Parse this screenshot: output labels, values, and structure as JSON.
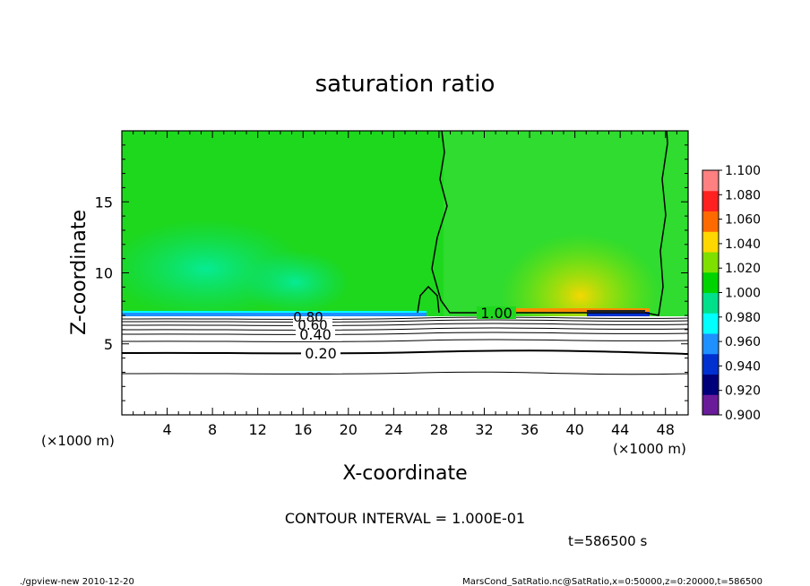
{
  "chart_data": {
    "type": "heatmap",
    "title": "saturation ratio",
    "xlabel": "X-coordinate",
    "ylabel": "Z-coordinate",
    "x_unit_left": "(×1000 m)",
    "x_unit_right": "(×1000 m)",
    "xlim": [
      0,
      50
    ],
    "ylim": [
      0,
      20
    ],
    "xticks": [
      4,
      8,
      12,
      16,
      20,
      24,
      28,
      32,
      36,
      40,
      44,
      48
    ],
    "yticks": [
      5,
      10,
      15
    ],
    "colorbar": {
      "levels": [
        0.9,
        0.92,
        0.94,
        0.96,
        0.98,
        1.0,
        1.02,
        1.04,
        1.06,
        1.08,
        1.1
      ],
      "labels": [
        "0.900",
        "0.920",
        "0.940",
        "0.960",
        "0.980",
        "1.000",
        "1.020",
        "1.040",
        "1.060",
        "1.080",
        "1.100"
      ],
      "colors": [
        "#6a1b9a",
        "#00007a",
        "#0030d0",
        "#1e90ff",
        "#00ffff",
        "#00e08a",
        "#00d400",
        "#7fe000",
        "#ffd700",
        "#ff6a00",
        "#ff2020",
        "#ff8080"
      ]
    },
    "contour_labels": [
      {
        "text": "0.20",
        "x": 18.5,
        "z": 4.4
      },
      {
        "text": "0.40",
        "x": 17.2,
        "z": 5.7
      },
      {
        "text": "0.60",
        "x": 16.7,
        "z": 6.3
      },
      {
        "text": "0.80",
        "x": 16.3,
        "z": 6.8
      },
      {
        "text": "1.00",
        "x": 32.6,
        "z": 7.2
      }
    ],
    "contour_interval": "CONTOUR INTERVAL = 1.000E-01",
    "time_label": "t=586500 s"
  },
  "footer": {
    "left": "./gpview-new   2010-12-20",
    "right": "MarsCond_SatRatio.nc@SatRatio,x=0:50000,z=0:20000,t=586500"
  }
}
